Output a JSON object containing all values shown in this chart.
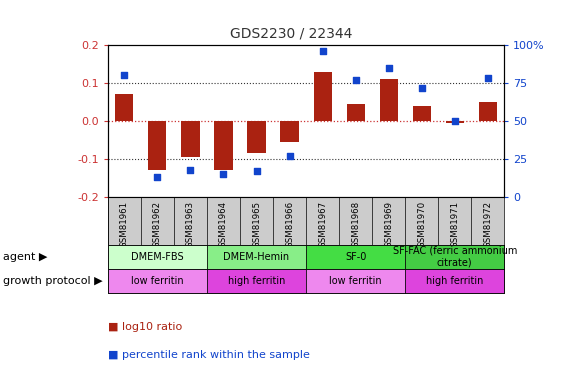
{
  "title": "GDS2230 / 22344",
  "samples": [
    "GSM81961",
    "GSM81962",
    "GSM81963",
    "GSM81964",
    "GSM81965",
    "GSM81966",
    "GSM81967",
    "GSM81968",
    "GSM81969",
    "GSM81970",
    "GSM81971",
    "GSM81972"
  ],
  "log10_ratio": [
    0.07,
    -0.13,
    -0.095,
    -0.13,
    -0.085,
    -0.055,
    0.13,
    0.045,
    0.11,
    0.04,
    -0.005,
    0.05
  ],
  "percentile_rank": [
    80,
    13,
    18,
    15,
    17,
    27,
    96,
    77,
    85,
    72,
    50,
    78
  ],
  "ylim_left": [
    -0.2,
    0.2
  ],
  "ylim_right": [
    0,
    100
  ],
  "yticks_left": [
    -0.2,
    -0.1,
    0.0,
    0.1,
    0.2
  ],
  "yticks_right": [
    0,
    25,
    50,
    75,
    100
  ],
  "bar_color": "#aa2211",
  "scatter_color": "#1144cc",
  "zero_line_color": "#cc3333",
  "dotted_line_color": "#333333",
  "agent_groups": [
    {
      "label": "DMEM-FBS",
      "start": 0,
      "end": 3,
      "color": "#ccffcc"
    },
    {
      "label": "DMEM-Hemin",
      "start": 3,
      "end": 6,
      "color": "#88ee88"
    },
    {
      "label": "SF-0",
      "start": 6,
      "end": 9,
      "color": "#44dd44"
    },
    {
      "label": "SF-FAC (ferric ammonium\ncitrate)",
      "start": 9,
      "end": 12,
      "color": "#44cc44"
    }
  ],
  "protocol_groups": [
    {
      "label": "low ferritin",
      "start": 0,
      "end": 3,
      "color": "#ee88ee"
    },
    {
      "label": "high ferritin",
      "start": 3,
      "end": 6,
      "color": "#dd44dd"
    },
    {
      "label": "low ferritin",
      "start": 6,
      "end": 9,
      "color": "#ee88ee"
    },
    {
      "label": "high ferritin",
      "start": 9,
      "end": 12,
      "color": "#dd44dd"
    }
  ],
  "agent_label": "agent",
  "protocol_label": "growth protocol",
  "legend_items": [
    {
      "label": "log10 ratio",
      "color": "#aa2211"
    },
    {
      "label": "percentile rank within the sample",
      "color": "#1144cc"
    }
  ],
  "left_tick_color": "#cc3333",
  "right_tick_color": "#1144cc",
  "background_color": "#ffffff",
  "header_bg_color": "#cccccc",
  "arrow_char": "▶"
}
